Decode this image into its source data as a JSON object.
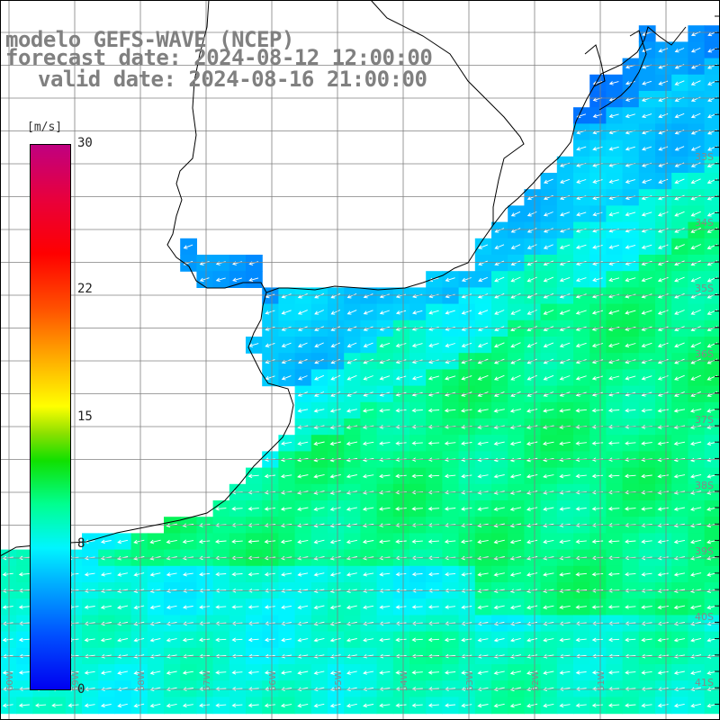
{
  "header": {
    "model_line": "modelo GEFS-WAVE (NCEP)",
    "forecast_line": "forecast date: 2024-08-12 12:00:00",
    "valid_line": "valid date: 2024-08-16 21:00:00"
  },
  "colorbar": {
    "units": "[m/s]",
    "ticks": [
      "30",
      "22",
      "15",
      "8",
      "0"
    ],
    "tick_values": [
      30,
      22,
      15,
      8,
      0
    ],
    "range": [
      0,
      30
    ]
  },
  "lat_labels": [
    "33S",
    "34S",
    "35S",
    "36S",
    "37S",
    "38S",
    "39S",
    "40S",
    "41S"
  ],
  "lon_labels": [
    "60W",
    "59W",
    "58W",
    "57W",
    "56W",
    "55W",
    "54W",
    "53W",
    "52W",
    "51W"
  ],
  "colors": {
    "land": "#ffffff",
    "coast": "#000000",
    "grid": "#808080",
    "arrow": "#ffffff",
    "label": "#888888"
  }
}
